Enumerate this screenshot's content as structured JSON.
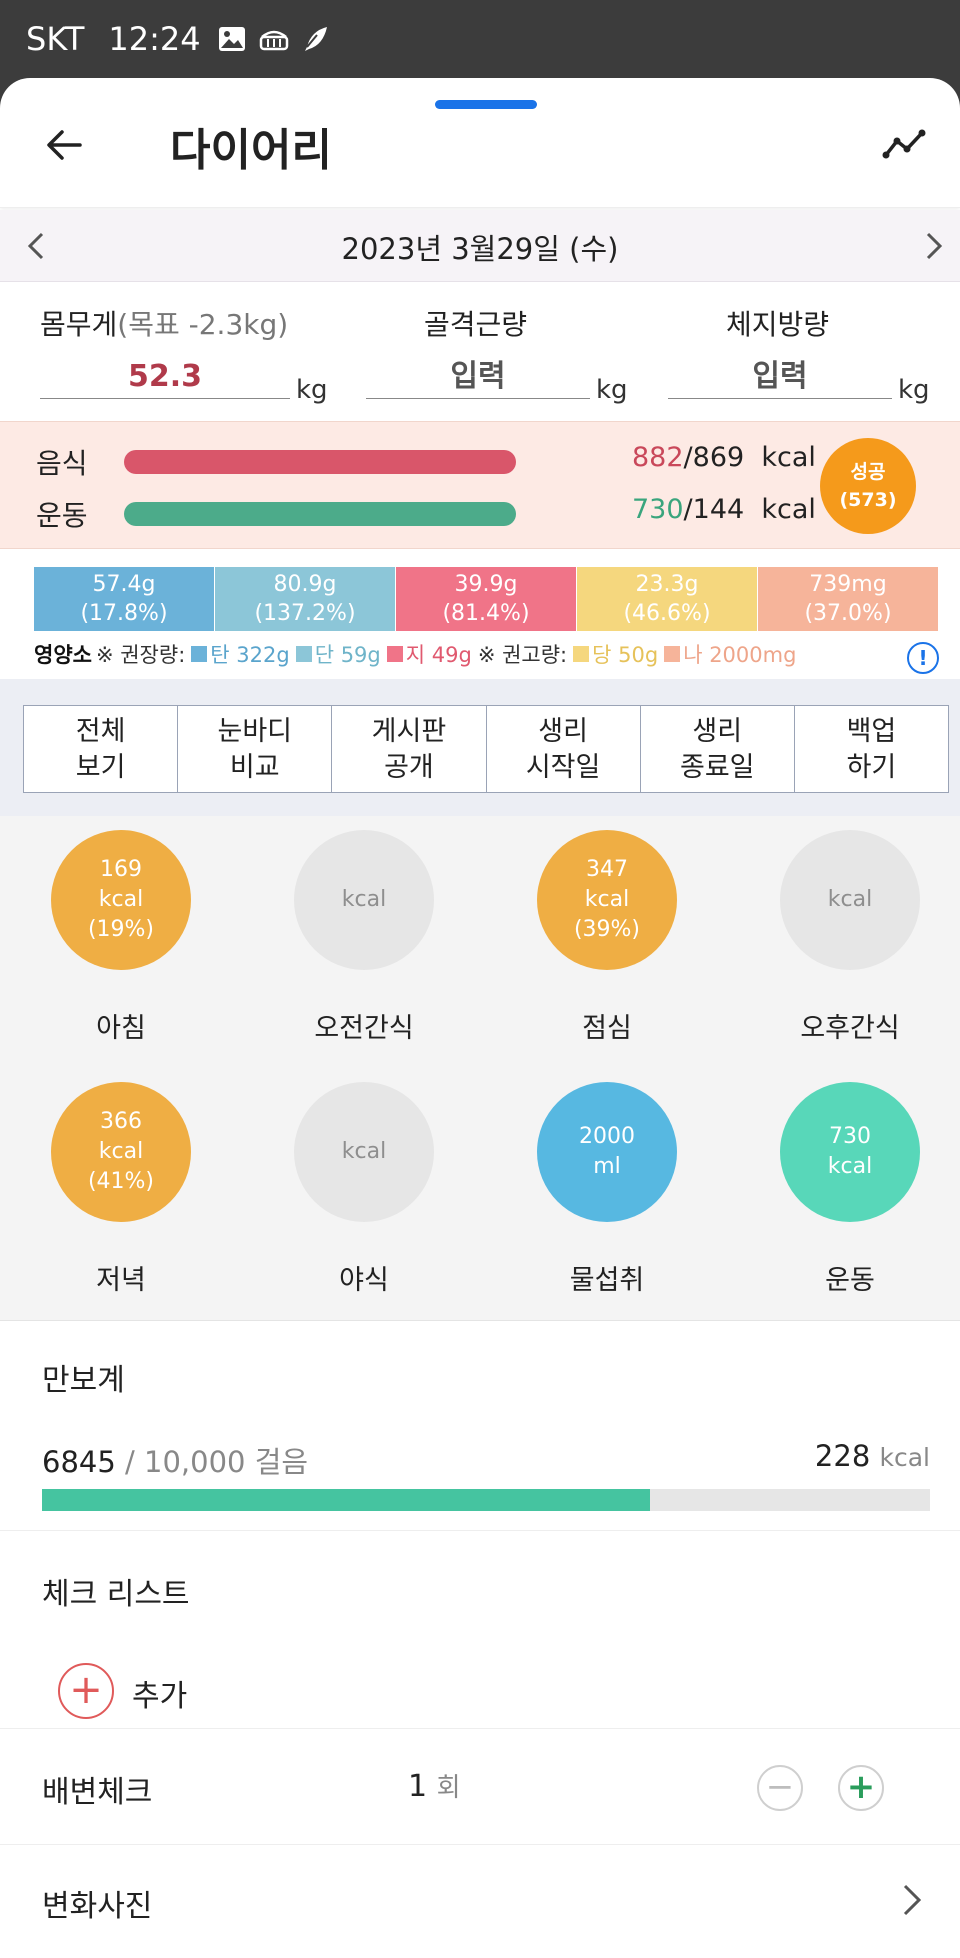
{
  "status_bar": {
    "carrier": "SKT",
    "time": "12:24",
    "icons": [
      "image-icon",
      "basket-icon",
      "feather-icon"
    ]
  },
  "header": {
    "title": "다이어리",
    "back_icon": "arrow-left-icon",
    "trend_icon": "line-chart-icon"
  },
  "date_bar": {
    "date": "2023년 3월29일 (수)"
  },
  "body_metrics": {
    "weight": {
      "label": "몸무게",
      "sub": "(목표 -2.3kg)",
      "value": "52.3",
      "unit": "kg",
      "color": "#b03a4a"
    },
    "muscle": {
      "label": "골격근량",
      "value": "입력",
      "unit": "kg"
    },
    "fat": {
      "label": "체지방량",
      "value": "입력",
      "unit": "kg"
    }
  },
  "calories": {
    "food": {
      "label": "음식",
      "value": "882",
      "goal": "/869",
      "unit": "kcal",
      "color": "#c9485a",
      "fill": 1.0
    },
    "exercise": {
      "label": "운동",
      "value": "730",
      "goal": "/144",
      "unit": "kcal",
      "color": "#3aa57d",
      "fill": 1.0
    },
    "badge": {
      "line1": "성공",
      "line2": "(573)"
    }
  },
  "nutrients": {
    "segments": [
      {
        "amount": "57.4g",
        "pct": "(17.8%)",
        "color": "#6bb2d9"
      },
      {
        "amount": "80.9g",
        "pct": "(137.2%)",
        "color": "#8cc6d8"
      },
      {
        "amount": "39.9g",
        "pct": "(81.4%)",
        "color": "#f07488"
      },
      {
        "amount": "23.3g",
        "pct": "(46.6%)",
        "color": "#f5d77e"
      },
      {
        "amount": "739mg",
        "pct": "(37.0%)",
        "color": "#f6b49a"
      }
    ],
    "legend": {
      "title": "영양소",
      "recommended_label": "※ 권장량:",
      "carb": "탄 322g",
      "protein": "단 59g",
      "fat": "지 49g",
      "advised_label": "※ 권고량:",
      "sugar": "당 50g",
      "sodium": "나 2000mg"
    },
    "info_icon": "!"
  },
  "menu": [
    {
      "line1": "전체",
      "line2": "보기"
    },
    {
      "line1": "눈바디",
      "line2": "비교"
    },
    {
      "line1": "게시판",
      "line2": "공개"
    },
    {
      "line1": "생리",
      "line2": "시작일"
    },
    {
      "line1": "생리",
      "line2": "종료일"
    },
    {
      "line1": "백업",
      "line2": "하기"
    }
  ],
  "meals": [
    {
      "name": "아침",
      "l1": "169",
      "l2": "kcal",
      "l3": "(19%)"
    },
    {
      "name": "오전간식",
      "l1": "",
      "l2": "kcal",
      "l3": ""
    },
    {
      "name": "점심",
      "l1": "347",
      "l2": "kcal",
      "l3": "(39%)"
    },
    {
      "name": "오후간식",
      "l1": "",
      "l2": "kcal",
      "l3": ""
    },
    {
      "name": "저녁",
      "l1": "366",
      "l2": "kcal",
      "l3": "(41%)"
    },
    {
      "name": "야식",
      "l1": "",
      "l2": "kcal",
      "l3": ""
    },
    {
      "name": "물섭취",
      "l1": "2000",
      "l2": "ml",
      "l3": ""
    },
    {
      "name": "운동",
      "l1": "730",
      "l2": "kcal",
      "l3": ""
    }
  ],
  "pedometer": {
    "title": "만보계",
    "steps": "6845",
    "goal_text": "/ 10,000 걸음",
    "kcal": "228",
    "kcal_unit": "kcal",
    "progress": 0.6845
  },
  "checklist": {
    "title": "체크 리스트",
    "add_label": "추가"
  },
  "bowel": {
    "title": "배변체크",
    "count": "1",
    "unit": "회"
  },
  "photos": {
    "title": "변화사진"
  }
}
